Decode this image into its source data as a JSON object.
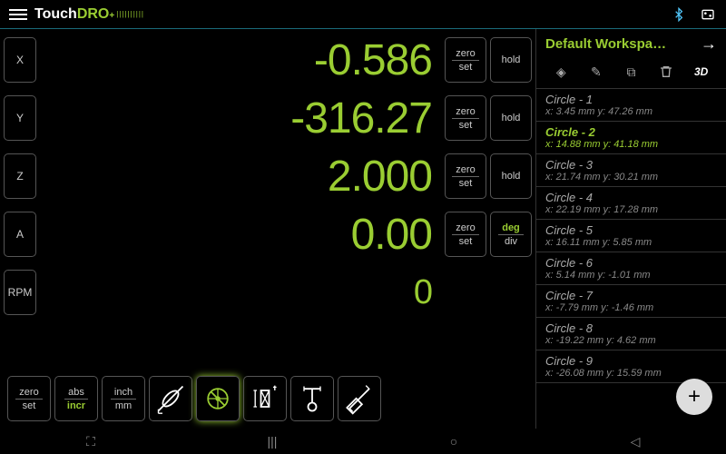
{
  "logo": {
    "touch": "Touch",
    "dro": "DRO",
    "plus": "+"
  },
  "axes": [
    {
      "label": "X",
      "value": "-0.586",
      "has_hold": true,
      "hold_label": "hold"
    },
    {
      "label": "Y",
      "value": "-316.27",
      "has_hold": true,
      "hold_label": "hold"
    },
    {
      "label": "Z",
      "value": "2.000",
      "has_hold": true,
      "hold_label": "hold"
    },
    {
      "label": "A",
      "value": "0.00",
      "has_deg": true
    },
    {
      "label": "RPM",
      "value": "0",
      "rpm": true
    }
  ],
  "zero_set": {
    "top": "zero",
    "bot": "set"
  },
  "deg_div": {
    "top": "deg",
    "bot": "div"
  },
  "toolbar": {
    "zero_set": {
      "top": "zero",
      "bot": "set"
    },
    "abs_incr": {
      "top": "abs",
      "bot": "incr"
    },
    "inch_mm": {
      "top": "inch",
      "bot": "mm"
    }
  },
  "sidebar": {
    "title": "Default Workspa…",
    "mode_3d": "3D",
    "circles": [
      {
        "name": "Circle - 1",
        "coords": "x: 3.45 mm y: 47.26 mm"
      },
      {
        "name": "Circle - 2",
        "coords": "x: 14.88 mm y: 41.18 mm",
        "active": true
      },
      {
        "name": "Circle - 3",
        "coords": "x: 21.74 mm y: 30.21 mm"
      },
      {
        "name": "Circle - 4",
        "coords": "x: 22.19 mm y: 17.28 mm"
      },
      {
        "name": "Circle - 5",
        "coords": "x: 16.11 mm y: 5.85 mm"
      },
      {
        "name": "Circle - 6",
        "coords": "x: 5.14 mm y: -1.01 mm"
      },
      {
        "name": "Circle - 7",
        "coords": "x: -7.79 mm y: -1.46 mm"
      },
      {
        "name": "Circle - 8",
        "coords": "x: -19.22 mm y: 4.62 mm"
      },
      {
        "name": "Circle - 9",
        "coords": "x: -26.08 mm y: 15.59 mm"
      }
    ]
  },
  "colors": {
    "accent": "#9acd32",
    "border": "#555",
    "text_dim": "#ccc"
  }
}
